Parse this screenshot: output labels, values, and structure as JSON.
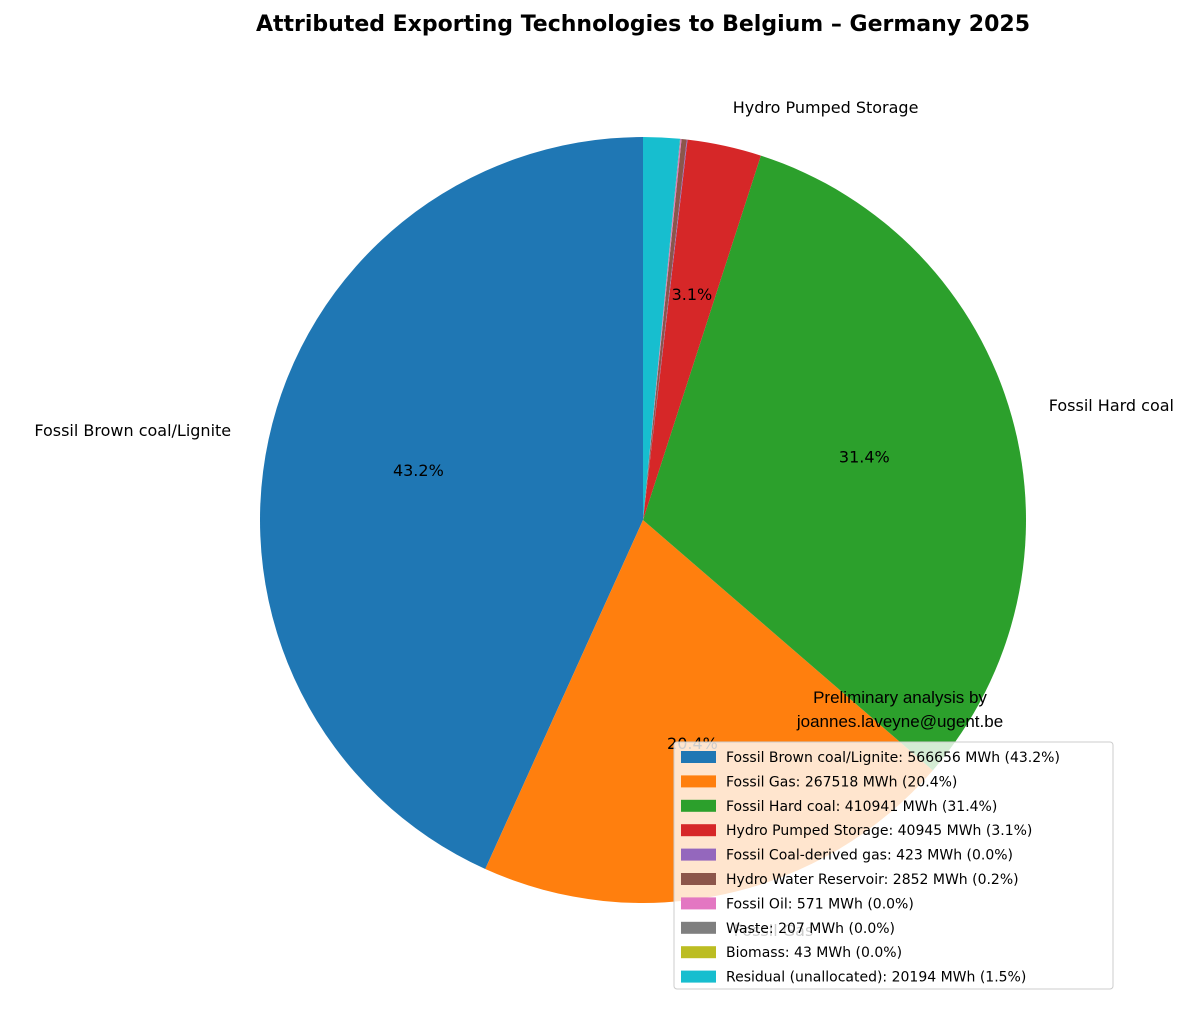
{
  "chart_data": {
    "type": "pie",
    "title": "Attributed Exporting Technologies to Belgium – Germany 2025",
    "unit": "MWh",
    "start_angle_deg": 90,
    "direction": "counterclockwise",
    "slices": [
      {
        "label": "Fossil Brown coal/Lignite",
        "value": 566656,
        "percent_label": "43.2%",
        "legend": "Fossil Brown coal/Lignite: 566656 MWh (43.2%)",
        "color": "#1f77b4",
        "show_outer_label": true
      },
      {
        "label": "Fossil Gas",
        "value": 267518,
        "percent_label": "20.4%",
        "legend": "Fossil Gas: 267518 MWh (20.4%)",
        "color": "#ff7f0e",
        "show_outer_label": true
      },
      {
        "label": "Fossil Hard coal",
        "value": 410941,
        "percent_label": "31.4%",
        "legend": "Fossil Hard coal: 410941 MWh (31.4%)",
        "color": "#2ca02c",
        "show_outer_label": true
      },
      {
        "label": "Hydro Pumped Storage",
        "value": 40945,
        "percent_label": "3.1%",
        "legend": "Hydro Pumped Storage: 40945 MWh (3.1%)",
        "color": "#d62728",
        "show_outer_label": true
      },
      {
        "label": "Fossil Coal-derived gas",
        "value": 423,
        "percent_label": "",
        "legend": "Fossil Coal-derived gas: 423 MWh (0.0%)",
        "color": "#9467bd",
        "show_outer_label": false
      },
      {
        "label": "Hydro Water Reservoir",
        "value": 2852,
        "percent_label": "",
        "legend": "Hydro Water Reservoir: 2852 MWh (0.2%)",
        "color": "#8c564b",
        "show_outer_label": false
      },
      {
        "label": "Fossil Oil",
        "value": 571,
        "percent_label": "",
        "legend": "Fossil Oil: 571 MWh (0.0%)",
        "color": "#e377c2",
        "show_outer_label": false
      },
      {
        "label": "Waste",
        "value": 207,
        "percent_label": "",
        "legend": "Waste: 207 MWh (0.0%)",
        "color": "#7f7f7f",
        "show_outer_label": false
      },
      {
        "label": "Biomass",
        "value": 43,
        "percent_label": "",
        "legend": "Biomass: 43 MWh (0.0%)",
        "color": "#bcbd22",
        "show_outer_label": false
      },
      {
        "label": "Residual (unallocated)",
        "value": 20194,
        "percent_label": "",
        "legend": "Residual (unallocated): 20194 MWh (1.5%)",
        "color": "#17becf",
        "show_outer_label": false
      }
    ],
    "legend_position": "lower-right"
  },
  "annotation": {
    "line1": "Preliminary analysis by",
    "line2": "joannes.laveyne@ugent.be"
  }
}
